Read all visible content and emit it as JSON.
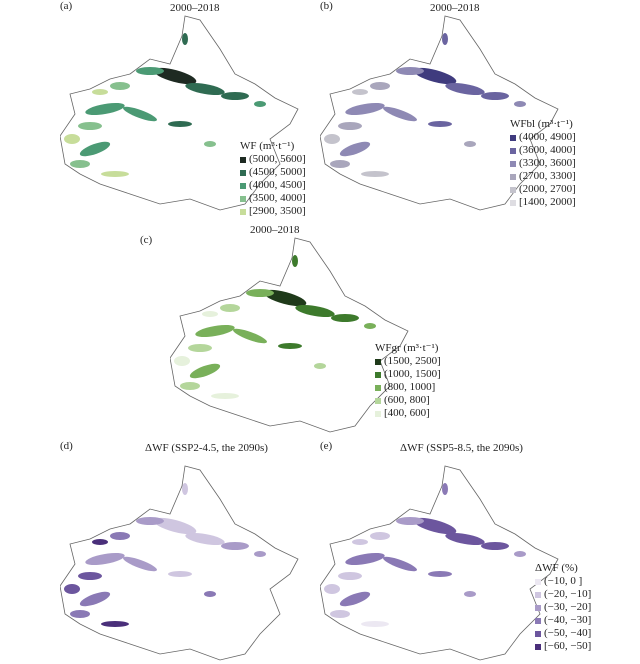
{
  "panels": [
    {
      "tag": "(a)",
      "title": "2000–2018",
      "legend_title": "WF (m³·t⁻¹)",
      "palette": [
        "#1e2a22",
        "#2f6b52",
        "#4b9a74",
        "#86c08e",
        "#c7dd9a"
      ],
      "classes": [
        "(5000, 5600]",
        "(4500, 5000]",
        "(4000, 4500]",
        "(3500, 4000]",
        "[2900, 3500]"
      ]
    },
    {
      "tag": "(b)",
      "title": "2000–2018",
      "legend_title": "WFbl (m³·t⁻¹)",
      "palette": [
        "#3f3b7e",
        "#6a64a0",
        "#8e89b4",
        "#a9a6bc",
        "#c4c3cc",
        "#dedde2"
      ],
      "classes": [
        "(4000, 4900]",
        "(3600, 4000]",
        "(3300, 3600]",
        "(2700, 3300]",
        "(2000, 2700]",
        "[1400, 2000]"
      ]
    },
    {
      "tag": "(c)",
      "title": "2000–2018",
      "legend_title": "WFgr (m³·t⁻¹)",
      "palette": [
        "#1f3a1a",
        "#3d7a2c",
        "#79b05a",
        "#b4d69b",
        "#e6f1dc"
      ],
      "classes": [
        "(1500, 2500]",
        "(1000, 1500]",
        "(800, 1000]",
        "(600, 800]",
        "[400, 600]"
      ]
    },
    {
      "tag": "(d)",
      "title": "ΔWF (SSP2-4.5, the 2090s)",
      "palette": [
        "#ece8f2",
        "#cfc6e0",
        "#a99bc8",
        "#8a79b5",
        "#6c569e",
        "#4a2f7a"
      ]
    },
    {
      "tag": "(e)",
      "title": "ΔWF (SSP5-8.5, the 2090s)",
      "legend_title": "ΔWF (%)",
      "palette": [
        "#ece8f2",
        "#cfc6e0",
        "#a99bc8",
        "#8a79b5",
        "#6c569e",
        "#4a2f7a"
      ],
      "classes": [
        "(−10, 0 ]",
        "(−20, −10]",
        "(−30, −20]",
        "(−40, −30]",
        "(−50, −40]",
        "[−60, −50]"
      ]
    }
  ]
}
